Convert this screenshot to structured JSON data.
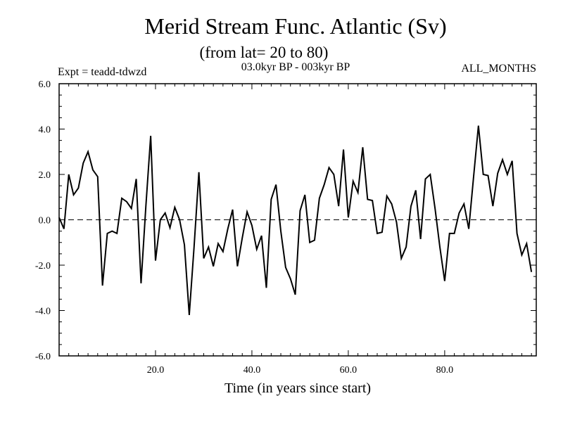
{
  "chart_data": {
    "type": "line",
    "title": "Merid Stream Func. Atlantic (Sv)",
    "subtitle": "(from lat= 20 to 80)",
    "left_label": "Expt = teadd-tdwzd",
    "center_label": "03.0kyr BP - 003kyr BP",
    "right_label": "ALL_MONTHS",
    "xlabel": "Time (in years since start)",
    "ylabel": "",
    "xlim": [
      0,
      99
    ],
    "ylim": [
      -6.0,
      6.0
    ],
    "x_ticks": [
      20,
      40,
      60,
      80
    ],
    "x_tick_labels": [
      "20.0",
      "40.0",
      "60.0",
      "80.0"
    ],
    "y_ticks": [
      6,
      4,
      2,
      0,
      -2,
      -4,
      -6
    ],
    "y_tick_labels": [
      "6.0",
      "4.0",
      "2.0",
      "0.0",
      "-2.0",
      "-4.0",
      "-6.0"
    ],
    "zero_line": "dashed",
    "x_start": 0,
    "x_step": 1,
    "series": [
      {
        "name": "Merid Stream Func.",
        "values": [
          0.1,
          -0.4,
          2.0,
          1.1,
          1.4,
          2.5,
          3.0,
          2.2,
          1.9,
          -2.9,
          -0.6,
          -0.5,
          -0.6,
          0.95,
          0.8,
          0.5,
          1.8,
          -2.8,
          0.6,
          3.7,
          -1.8,
          0.0,
          0.3,
          -0.35,
          0.55,
          0.0,
          -1.1,
          -4.2,
          -1.2,
          2.1,
          -1.7,
          -1.2,
          -2.05,
          -1.05,
          -1.4,
          -0.4,
          0.45,
          -2.05,
          -0.8,
          0.35,
          -0.25,
          -1.3,
          -0.7,
          -3.0,
          0.9,
          1.55,
          -0.5,
          -2.1,
          -2.6,
          -3.3,
          0.4,
          1.1,
          -1.0,
          -0.9,
          0.95,
          1.55,
          2.3,
          2.0,
          0.6,
          3.1,
          0.1,
          1.7,
          1.2,
          3.2,
          0.9,
          0.85,
          -0.6,
          -0.55,
          1.05,
          0.7,
          -0.1,
          -1.7,
          -1.2,
          0.6,
          1.3,
          -0.85,
          1.8,
          2.0,
          0.5,
          -1.2,
          -2.7,
          -0.6,
          -0.6,
          0.3,
          0.7,
          -0.4,
          1.9,
          4.15,
          2.0,
          1.95,
          0.6,
          2.05,
          2.65,
          2.0,
          2.6,
          -0.6,
          -1.55,
          -1.05,
          -2.3
        ]
      }
    ]
  }
}
